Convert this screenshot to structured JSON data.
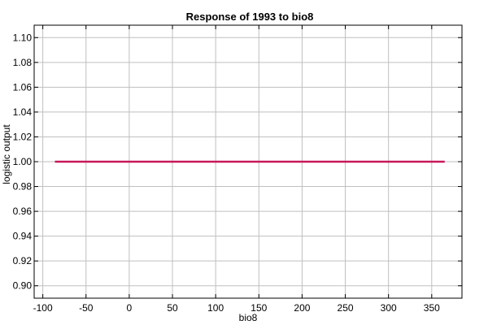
{
  "chart_data": {
    "type": "line",
    "title": "Response of 1993 to bio8",
    "xlabel": "bio8",
    "ylabel": "logistic output",
    "xlim": [
      -110,
      385
    ],
    "ylim": [
      0.89,
      1.11
    ],
    "x_ticks": [
      -100,
      -50,
      0,
      50,
      100,
      150,
      200,
      250,
      300,
      350
    ],
    "y_ticks": [
      0.9,
      0.92,
      0.94,
      0.96,
      0.98,
      1.0,
      1.02,
      1.04,
      1.06,
      1.08,
      1.1
    ],
    "x_tick_labels": [
      "-100",
      "-50",
      "0",
      "50",
      "100",
      "150",
      "200",
      "250",
      "300",
      "350"
    ],
    "y_tick_labels": [
      "0.90",
      "0.92",
      "0.94",
      "0.96",
      "0.98",
      "1.00",
      "1.02",
      "1.04",
      "1.06",
      "1.08",
      "1.10"
    ],
    "grid": true,
    "series": [
      {
        "color": "#c8175a",
        "x": [
          -86,
          365
        ],
        "y": [
          1.0,
          1.0
        ]
      }
    ]
  }
}
